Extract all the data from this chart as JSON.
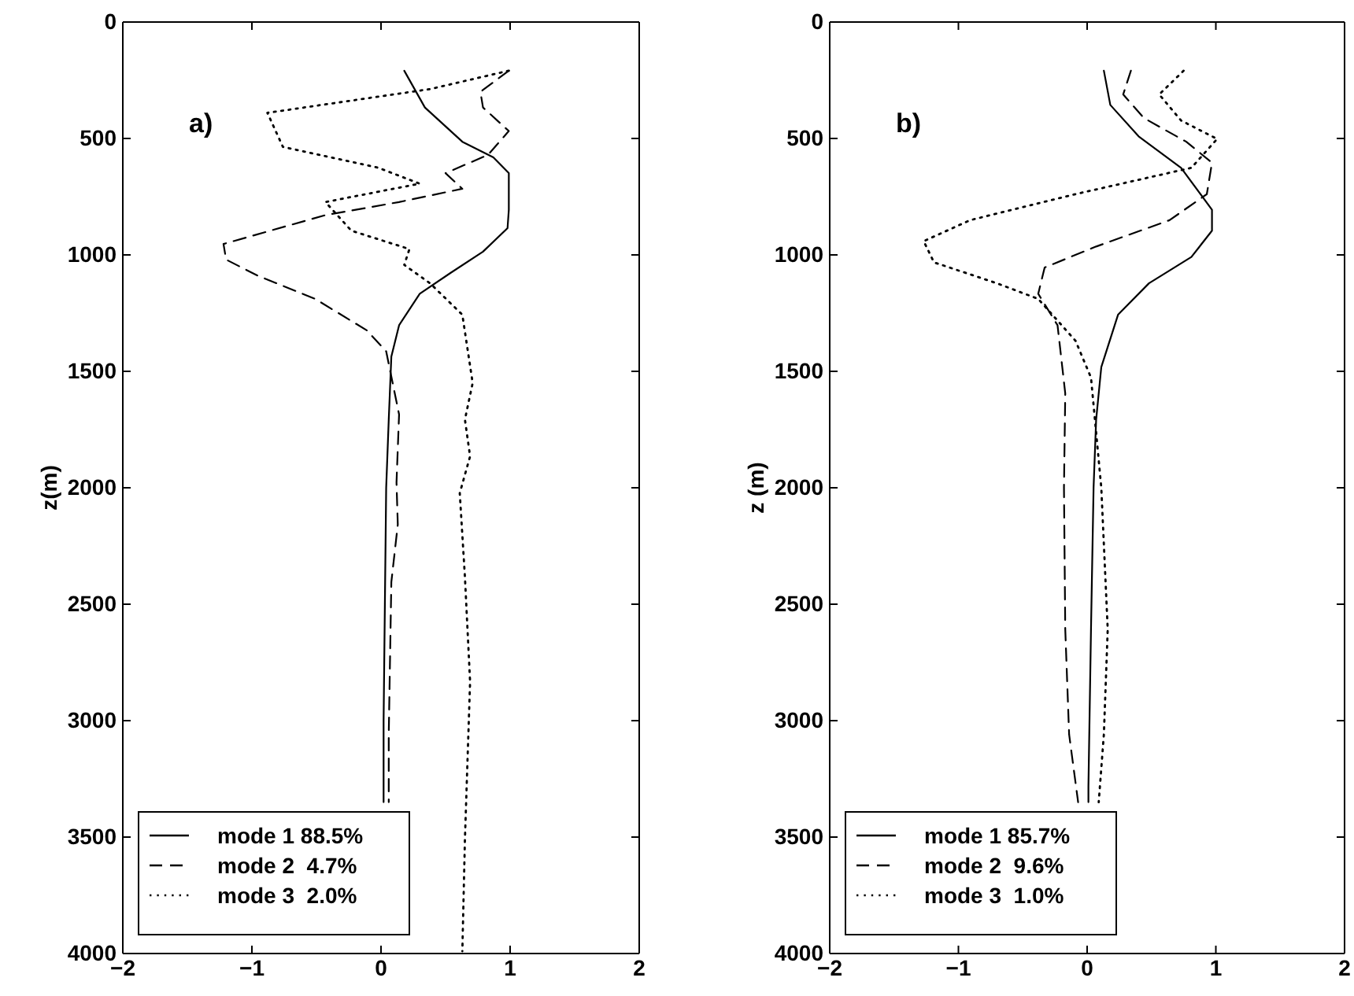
{
  "chart_data": [
    {
      "type": "line",
      "title": "a)",
      "ylabel": "z(m)",
      "xlim": [
        -2,
        2
      ],
      "xticks": [
        -2,
        -1,
        0,
        1,
        2
      ],
      "ylim": [
        4000,
        0
      ],
      "yticks": [
        0,
        500,
        1000,
        1500,
        2000,
        2500,
        3000,
        3500,
        4000
      ],
      "grid": false,
      "legend": "bottom left",
      "series": [
        {
          "name": "mode 1 88.5%",
          "color": "#000000",
          "line_style": "solid",
          "x": [
            0.18,
            0.34,
            0.63,
            0.87,
            0.99,
            0.99,
            0.98,
            0.79,
            0.54,
            0.3,
            0.14,
            0.08,
            0.06,
            0.04,
            0.03,
            0.02,
            0.02
          ],
          "values": [
            209,
            367,
            514,
            581,
            649,
            806,
            885,
            986,
            1077,
            1167,
            1302,
            1437,
            1707,
            2000,
            2500,
            3000,
            3350
          ]
        },
        {
          "name": "mode 2  4.7%",
          "color": "#000000",
          "line_style": "dashed",
          "x": [
            0.99,
            0.77,
            0.79,
            0.99,
            0.83,
            0.5,
            0.63,
            0.14,
            -0.43,
            -1.22,
            -1.2,
            -0.96,
            -0.51,
            -0.11,
            0.04,
            0.14,
            0.12,
            0.13,
            0.08,
            0.06,
            0.06
          ],
          "values": [
            209,
            300,
            367,
            468,
            570,
            649,
            716,
            773,
            829,
            953,
            1020,
            1088,
            1189,
            1324,
            1414,
            1685,
            1977,
            2158,
            2405,
            3059,
            3350
          ]
        },
        {
          "name": "mode 3  2.0%",
          "color": "#000000",
          "line_style": "dotted",
          "x": [
            0.99,
            0.38,
            -0.88,
            -0.76,
            -0.02,
            0.3,
            -0.43,
            -0.23,
            0.22,
            0.18,
            0.38,
            0.63,
            0.71,
            0.65,
            0.69,
            0.61,
            0.65,
            0.69,
            0.65,
            0.63
          ],
          "values": [
            209,
            288,
            390,
            536,
            626,
            694,
            773,
            896,
            975,
            1043,
            1122,
            1257,
            1550,
            1707,
            1865,
            2023,
            2383,
            2833,
            3509,
            3990
          ]
        }
      ]
    },
    {
      "type": "line",
      "title": "b)",
      "ylabel": "z (m)",
      "xlim": [
        -2,
        2
      ],
      "xticks": [
        -2,
        -1,
        0,
        1,
        2
      ],
      "ylim": [
        4000,
        0
      ],
      "yticks": [
        0,
        500,
        1000,
        1500,
        2000,
        2500,
        3000,
        3500,
        4000
      ],
      "grid": false,
      "legend": "bottom left",
      "series": [
        {
          "name": "mode 1 85.7%",
          "color": "#000000",
          "line_style": "solid",
          "x": [
            0.13,
            0.18,
            0.4,
            0.73,
            0.97,
            0.97,
            0.81,
            0.48,
            0.24,
            0.11,
            0.07,
            0.05,
            0.03,
            0.01,
            0.01
          ],
          "values": [
            209,
            356,
            491,
            626,
            806,
            896,
            1009,
            1122,
            1257,
            1482,
            1707,
            2000,
            2608,
            3284,
            3350
          ]
        },
        {
          "name": "mode 2  9.6%",
          "color": "#000000",
          "line_style": "dashed",
          "x": [
            0.34,
            0.28,
            0.44,
            0.77,
            0.97,
            0.93,
            0.64,
            0.07,
            -0.33,
            -0.38,
            -0.23,
            -0.17,
            -0.18,
            -0.17,
            -0.14,
            -0.07
          ],
          "values": [
            209,
            311,
            412,
            514,
            604,
            739,
            851,
            964,
            1054,
            1167,
            1302,
            1595,
            2000,
            2608,
            3059,
            3350
          ]
        },
        {
          "name": "mode 3  1.0%",
          "color": "#000000",
          "line_style": "dotted",
          "x": [
            0.75,
            0.56,
            0.73,
            1.01,
            0.81,
            -0.09,
            -0.91,
            -1.27,
            -1.19,
            -0.7,
            -0.38,
            -0.09,
            0.03,
            0.11,
            0.16,
            0.13,
            0.09
          ],
          "values": [
            209,
            311,
            423,
            502,
            626,
            739,
            851,
            941,
            1032,
            1122,
            1189,
            1369,
            1527,
            2000,
            2608,
            3059,
            3350
          ]
        }
      ]
    }
  ]
}
